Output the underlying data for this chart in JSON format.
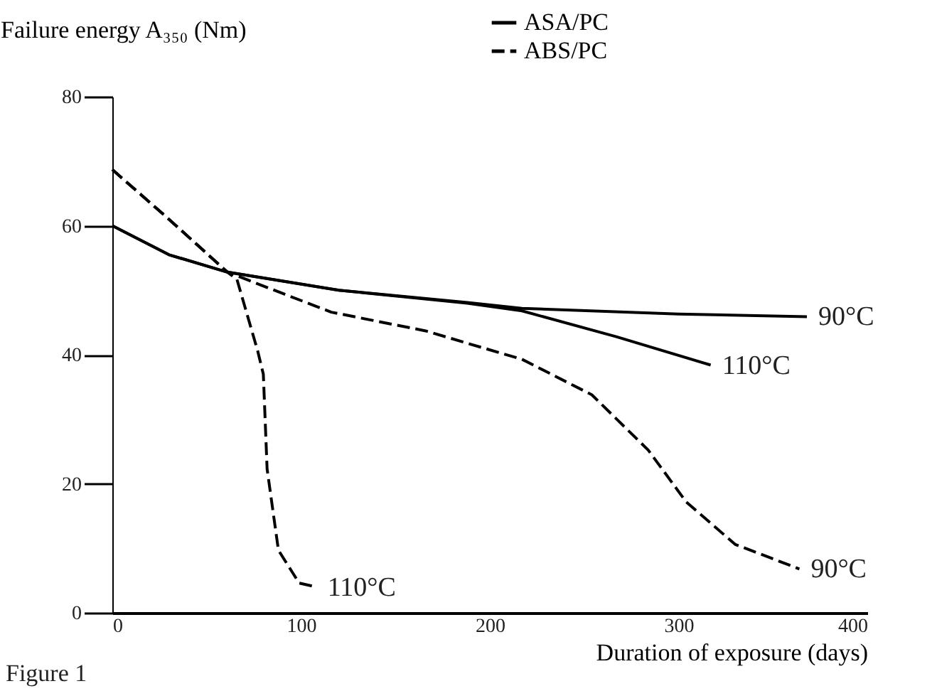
{
  "chart_data": {
    "type": "line",
    "xlabel": "Duration of exposure (days)",
    "ylabel": "Failure energy A₃₅₀ (Nm)",
    "xlim": [
      0,
      400
    ],
    "xticks": [
      0,
      100,
      200,
      300,
      400
    ],
    "ylim": [
      0,
      80
    ],
    "yticks": [
      0,
      20,
      40,
      60,
      80
    ],
    "grid": false,
    "legend": "top right",
    "marker": "none",
    "series": [
      {
        "name": "ASA/PC",
        "color": "#000000",
        "line_style": "solid",
        "x": [
          0,
          30,
          61,
          120,
          188,
          217,
          300,
          368
        ],
        "values": [
          60,
          55.5,
          52.8,
          50,
          48.1,
          47.2,
          46.3,
          45.9
        ]
      },
      {
        "color": "#000000",
        "line_style": "solid",
        "x": [
          0,
          30,
          61,
          120,
          188,
          217,
          267,
          317
        ],
        "values": [
          60,
          55.5,
          52.8,
          50,
          48,
          46.8,
          42.8,
          38.4
        ]
      },
      {
        "name": "ABS/PC",
        "color": "#000000",
        "line_style": "dashed",
        "x": [
          0,
          30,
          61,
          116,
          166,
          189,
          217,
          254,
          284,
          304,
          330,
          364
        ],
        "values": [
          68.7,
          61,
          52.8,
          46.6,
          43.7,
          41.7,
          39.3,
          33.8,
          25.2,
          17.2,
          10.6,
          6.8
        ]
      },
      {
        "color": "#000000",
        "line_style": "dashed",
        "x": [
          0,
          30,
          61,
          66,
          77,
          80,
          82,
          88,
          99,
          108
        ],
        "values": [
          68.7,
          61,
          52.8,
          51.7,
          40.6,
          37,
          22.3,
          9.7,
          4.6,
          4.0
        ]
      }
    ],
    "annotations": [
      {
        "text": "90°C",
        "x": 368,
        "y": 45.9
      },
      {
        "text": "110°C",
        "x": 317,
        "y": 38.4
      },
      {
        "text": "90°C",
        "x": 364,
        "y": 6.8
      },
      {
        "text": "110°C",
        "x": 108,
        "y": 4.0
      },
      "Figure 1"
    ]
  }
}
